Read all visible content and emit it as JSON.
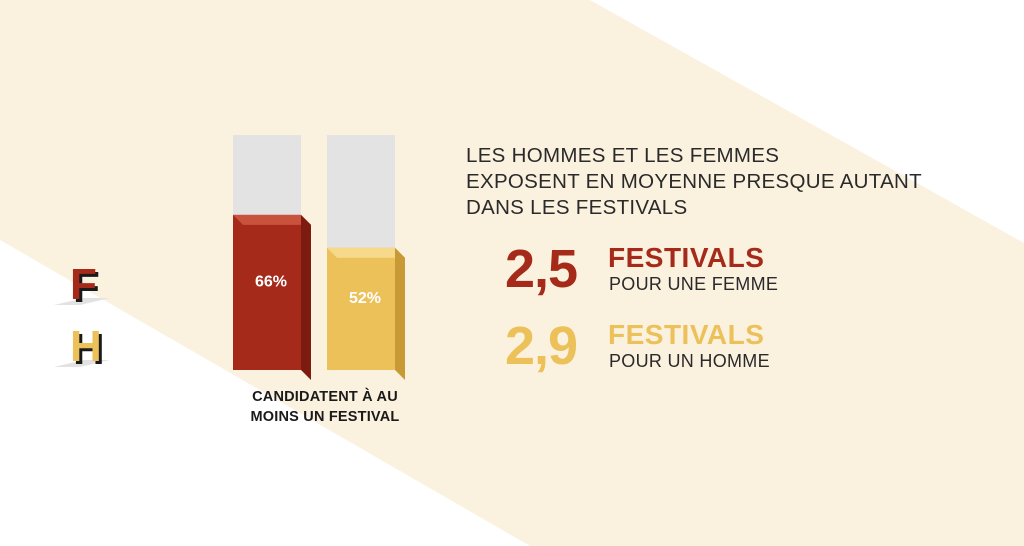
{
  "colors": {
    "band": "#fbf1df",
    "female": "#a52a1a",
    "male": "#ecc15a",
    "track": "#e3e3e3",
    "text": "#1a1a1a"
  },
  "legend": {
    "female_letter": "F",
    "male_letter": "H"
  },
  "chart_data": {
    "type": "bar",
    "categories": [
      "F",
      "H"
    ],
    "values": [
      66,
      52
    ],
    "value_labels": [
      "66%",
      "52%"
    ],
    "unit": "%",
    "ylim": [
      0,
      100
    ],
    "xlabel": "CANDIDATENT À AU MOINS UN FESTIVAL",
    "caption_lines": [
      "CANDIDATENT À AU",
      "MOINS UN FESTIVAL"
    ],
    "grid": false
  },
  "headline": {
    "lines": [
      "LES HOMMES ET LES FEMMES",
      "EXPOSENT EN MOYENNE PRESQUE AUTANT",
      "DANS LES FESTIVALS"
    ]
  },
  "stats": [
    {
      "value": "2,5",
      "unit": "FESTIVALS",
      "label": "POUR UNE FEMME"
    },
    {
      "value": "2,9",
      "unit": "FESTIVALS",
      "label": "POUR UN HOMME"
    }
  ]
}
